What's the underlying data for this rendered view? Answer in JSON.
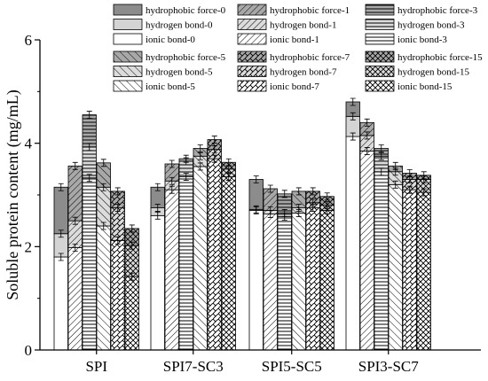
{
  "chart_data": {
    "type": "bar",
    "stacked": true,
    "ylabel": "Soluble protein content (mg/mL)",
    "xlabel": "",
    "ylim": [
      0,
      6
    ],
    "yticks": [
      0,
      2,
      4,
      6
    ],
    "categories": [
      "SPI",
      "SPI7-SC3",
      "SPI5-SC5",
      "SPI3-SC7"
    ],
    "times": [
      "0",
      "1",
      "3",
      "5",
      "7",
      "15"
    ],
    "components": [
      "ionic bond",
      "hydrogen bond",
      "hydrophobic force"
    ],
    "legend": [
      "hydrophobic force-0",
      "hydrogen bond-0",
      "ionic bond-0",
      "hydrophobic force-1",
      "hydrogen bond-1",
      "ionic bond-1",
      "hydrophobic force-3",
      "hydrogen bond-3",
      "ionic bond-3",
      "hydrophobic force-5",
      "hydrogen bond-5",
      "ionic bond-5",
      "hydrophobic force-7",
      "hydrogen bond-7",
      "ionic bond-7",
      "hydrophobic force-15",
      "hydrogen bond-15",
      "ionic bond-15"
    ],
    "values": {
      "SPI": {
        "0": [
          1.8,
          2.25,
          3.15
        ],
        "1": [
          1.98,
          2.5,
          3.56
        ],
        "3": [
          3.33,
          3.93,
          4.55
        ],
        "5": [
          2.4,
          3.15,
          3.62
        ],
        "7": [
          2.12,
          2.75,
          3.07
        ],
        "15": [
          1.42,
          2.02,
          2.35
        ]
      },
      "SPI7-SC3": {
        "0": [
          2.6,
          2.75,
          3.15
        ],
        "1": [
          3.1,
          3.27,
          3.6
        ],
        "3": [
          3.35,
          3.65,
          3.7
        ],
        "5": [
          3.55,
          3.75,
          3.9
        ],
        "7": [
          3.7,
          3.88,
          4.07
        ],
        "15": [
          3.35,
          3.5,
          3.63
        ]
      },
      "SPI5-SC5": {
        "0": [
          2.7,
          2.72,
          3.3
        ],
        "1": [
          2.63,
          2.7,
          3.12
        ],
        "3": [
          2.58,
          2.65,
          3.02
        ],
        "5": [
          2.65,
          2.75,
          3.07
        ],
        "7": [
          2.75,
          2.85,
          3.07
        ],
        "15": [
          2.7,
          2.8,
          2.97
        ]
      },
      "SPI3-SC7": {
        "0": [
          4.13,
          4.52,
          4.8
        ],
        "1": [
          3.85,
          4.15,
          4.4
        ],
        "3": [
          3.45,
          3.75,
          3.9
        ],
        "5": [
          3.2,
          3.45,
          3.56
        ],
        "7": [
          3.1,
          3.3,
          3.42
        ],
        "15": [
          3.05,
          3.3,
          3.38
        ]
      }
    },
    "colors": {
      "hydrophobic_fill": "#8c8c8c",
      "hydrogen_fill": "#d4d4d4",
      "ionic_fill": "#ffffff",
      "stroke": "#000000"
    }
  }
}
